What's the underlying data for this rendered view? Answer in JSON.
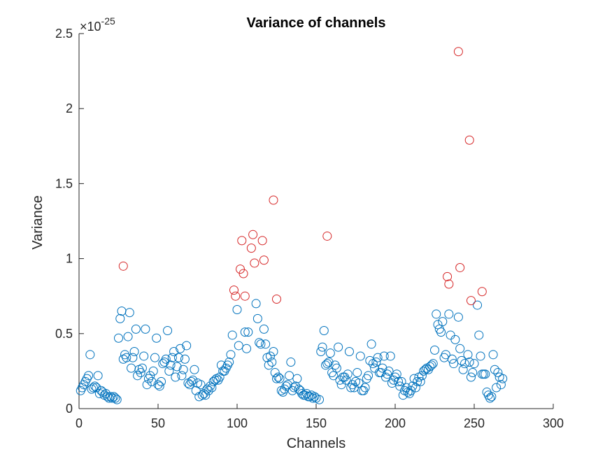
{
  "chart_data": {
    "type": "scatter",
    "title": "Variance of channels",
    "xlabel": "Channels",
    "ylabel": "Variance",
    "xlim": [
      0,
      300
    ],
    "ylim": [
      0,
      2.5
    ],
    "exponent_label": "×10",
    "exponent_value": "-25",
    "grid": false,
    "colors": {
      "normal": "#0072BD",
      "outlier": "#D62728",
      "axis": "#262626"
    },
    "x_ticks": [
      {
        "value": 0,
        "label": "0"
      },
      {
        "value": 50,
        "label": "50"
      },
      {
        "value": 100,
        "label": "100"
      },
      {
        "value": 150,
        "label": "150"
      },
      {
        "value": 200,
        "label": "200"
      },
      {
        "value": 250,
        "label": "250"
      },
      {
        "value": 300,
        "label": "300"
      }
    ],
    "y_ticks": [
      {
        "value": 0,
        "label": "0"
      },
      {
        "value": 0.5,
        "label": "0.5"
      },
      {
        "value": 1,
        "label": "1"
      },
      {
        "value": 1.5,
        "label": "1.5"
      },
      {
        "value": 2,
        "label": "2"
      },
      {
        "value": 2.5,
        "label": "2.5"
      }
    ],
    "series": [
      {
        "values": [
          [
            1,
            0.12
          ],
          [
            2,
            0.14
          ],
          [
            3,
            0.16
          ],
          [
            4,
            0.18
          ],
          [
            5,
            0.2
          ],
          [
            6,
            0.22
          ],
          [
            7,
            0.36
          ],
          [
            8,
            0.13
          ],
          [
            9,
            0.14
          ],
          [
            10,
            0.15
          ],
          [
            11,
            0.14
          ],
          [
            12,
            0.22
          ],
          [
            13,
            0.1
          ],
          [
            14,
            0.12
          ],
          [
            15,
            0.11
          ],
          [
            16,
            0.09
          ],
          [
            17,
            0.1
          ],
          [
            18,
            0.08
          ],
          [
            19,
            0.07
          ],
          [
            20,
            0.08
          ],
          [
            21,
            0.07
          ],
          [
            22,
            0.08
          ],
          [
            23,
            0.07
          ],
          [
            24,
            0.06
          ],
          [
            25,
            0.47
          ],
          [
            26,
            0.6
          ],
          [
            27,
            0.65
          ],
          [
            28,
            0.33
          ],
          [
            29,
            0.36
          ],
          [
            30,
            0.34
          ],
          [
            31,
            0.48
          ],
          [
            32,
            0.64
          ],
          [
            33,
            0.27
          ],
          [
            34,
            0.34
          ],
          [
            35,
            0.38
          ],
          [
            36,
            0.53
          ],
          [
            37,
            0.22
          ],
          [
            38,
            0.26
          ],
          [
            39,
            0.24
          ],
          [
            40,
            0.27
          ],
          [
            41,
            0.35
          ],
          [
            42,
            0.53
          ],
          [
            43,
            0.16
          ],
          [
            44,
            0.2
          ],
          [
            45,
            0.22
          ],
          [
            46,
            0.18
          ],
          [
            47,
            0.25
          ],
          [
            48,
            0.34
          ],
          [
            49,
            0.47
          ],
          [
            50,
            0.16
          ],
          [
            51,
            0.15
          ],
          [
            52,
            0.18
          ],
          [
            53,
            0.3
          ],
          [
            54,
            0.31
          ],
          [
            55,
            0.33
          ],
          [
            56,
            0.52
          ],
          [
            57,
            0.25
          ],
          [
            58,
            0.29
          ],
          [
            59,
            0.34
          ],
          [
            60,
            0.38
          ],
          [
            61,
            0.21
          ],
          [
            62,
            0.28
          ],
          [
            63,
            0.34
          ],
          [
            64,
            0.4
          ],
          [
            65,
            0.22
          ],
          [
            66,
            0.26
          ],
          [
            67,
            0.33
          ],
          [
            68,
            0.42
          ],
          [
            69,
            0.17
          ],
          [
            70,
            0.16
          ],
          [
            71,
            0.18
          ],
          [
            72,
            0.19
          ],
          [
            73,
            0.26
          ],
          [
            74,
            0.12
          ],
          [
            75,
            0.17
          ],
          [
            76,
            0.08
          ],
          [
            77,
            0.16
          ],
          [
            78,
            0.09
          ],
          [
            79,
            0.1
          ],
          [
            80,
            0.09
          ],
          [
            81,
            0.13
          ],
          [
            82,
            0.12
          ],
          [
            83,
            0.15
          ],
          [
            84,
            0.14
          ],
          [
            85,
            0.18
          ],
          [
            86,
            0.19
          ],
          [
            87,
            0.2
          ],
          [
            88,
            0.19
          ],
          [
            89,
            0.21
          ],
          [
            90,
            0.29
          ],
          [
            91,
            0.25
          ],
          [
            92,
            0.25
          ],
          [
            93,
            0.27
          ],
          [
            94,
            0.29
          ],
          [
            95,
            0.31
          ],
          [
            96,
            0.36
          ],
          [
            97,
            0.49
          ],
          [
            100,
            0.66
          ],
          [
            101,
            0.42
          ],
          [
            105,
            0.51
          ],
          [
            106,
            0.4
          ],
          [
            107,
            0.51
          ],
          [
            112,
            0.7
          ],
          [
            113,
            0.6
          ],
          [
            114,
            0.44
          ],
          [
            115,
            0.43
          ],
          [
            117,
            0.53
          ],
          [
            118,
            0.43
          ],
          [
            119,
            0.34
          ],
          [
            120,
            0.29
          ],
          [
            121,
            0.35
          ],
          [
            122,
            0.31
          ],
          [
            123,
            0.38
          ],
          [
            124,
            0.24
          ],
          [
            125,
            0.2
          ],
          [
            126,
            0.21
          ],
          [
            127,
            0.2
          ],
          [
            128,
            0.12
          ],
          [
            129,
            0.11
          ],
          [
            130,
            0.13
          ],
          [
            131,
            0.15
          ],
          [
            132,
            0.16
          ],
          [
            133,
            0.22
          ],
          [
            134,
            0.31
          ],
          [
            135,
            0.12
          ],
          [
            136,
            0.14
          ],
          [
            137,
            0.15
          ],
          [
            138,
            0.2
          ],
          [
            139,
            0.13
          ],
          [
            140,
            0.12
          ],
          [
            141,
            0.1
          ],
          [
            142,
            0.09
          ],
          [
            143,
            0.09
          ],
          [
            144,
            0.1
          ],
          [
            145,
            0.08
          ],
          [
            146,
            0.08
          ],
          [
            147,
            0.09
          ],
          [
            148,
            0.07
          ],
          [
            149,
            0.08
          ],
          [
            150,
            0.07
          ],
          [
            152,
            0.06
          ],
          [
            153,
            0.38
          ],
          [
            154,
            0.41
          ],
          [
            155,
            0.52
          ],
          [
            156,
            0.29
          ],
          [
            157,
            0.3
          ],
          [
            158,
            0.31
          ],
          [
            159,
            0.37
          ],
          [
            160,
            0.24
          ],
          [
            161,
            0.22
          ],
          [
            162,
            0.29
          ],
          [
            163,
            0.27
          ],
          [
            164,
            0.41
          ],
          [
            165,
            0.19
          ],
          [
            166,
            0.16
          ],
          [
            167,
            0.21
          ],
          [
            168,
            0.21
          ],
          [
            169,
            0.19
          ],
          [
            170,
            0.23
          ],
          [
            171,
            0.38
          ],
          [
            172,
            0.14
          ],
          [
            173,
            0.16
          ],
          [
            174,
            0.14
          ],
          [
            175,
            0.18
          ],
          [
            176,
            0.24
          ],
          [
            177,
            0.17
          ],
          [
            178,
            0.35
          ],
          [
            179,
            0.12
          ],
          [
            180,
            0.12
          ],
          [
            181,
            0.14
          ],
          [
            182,
            0.2
          ],
          [
            183,
            0.22
          ],
          [
            184,
            0.32
          ],
          [
            185,
            0.43
          ],
          [
            186,
            0.3
          ],
          [
            187,
            0.27
          ],
          [
            188,
            0.31
          ],
          [
            189,
            0.34
          ],
          [
            190,
            0.24
          ],
          [
            191,
            0.24
          ],
          [
            192,
            0.27
          ],
          [
            193,
            0.35
          ],
          [
            194,
            0.21
          ],
          [
            195,
            0.23
          ],
          [
            196,
            0.25
          ],
          [
            197,
            0.35
          ],
          [
            198,
            0.17
          ],
          [
            199,
            0.19
          ],
          [
            200,
            0.21
          ],
          [
            201,
            0.23
          ],
          [
            202,
            0.18
          ],
          [
            203,
            0.15
          ],
          [
            204,
            0.18
          ],
          [
            205,
            0.09
          ],
          [
            206,
            0.12
          ],
          [
            207,
            0.14
          ],
          [
            208,
            0.11
          ],
          [
            209,
            0.1
          ],
          [
            210,
            0.12
          ],
          [
            211,
            0.15
          ],
          [
            212,
            0.2
          ],
          [
            213,
            0.14
          ],
          [
            214,
            0.18
          ],
          [
            215,
            0.21
          ],
          [
            216,
            0.18
          ],
          [
            217,
            0.22
          ],
          [
            218,
            0.25
          ],
          [
            219,
            0.26
          ],
          [
            220,
            0.27
          ],
          [
            221,
            0.26
          ],
          [
            222,
            0.28
          ],
          [
            223,
            0.29
          ],
          [
            224,
            0.3
          ],
          [
            225,
            0.39
          ],
          [
            226,
            0.63
          ],
          [
            227,
            0.56
          ],
          [
            228,
            0.53
          ],
          [
            229,
            0.51
          ],
          [
            230,
            0.58
          ],
          [
            231,
            0.34
          ],
          [
            232,
            0.36
          ],
          [
            234,
            0.63
          ],
          [
            235,
            0.49
          ],
          [
            236,
            0.33
          ],
          [
            237,
            0.3
          ],
          [
            238,
            0.46
          ],
          [
            240,
            0.61
          ],
          [
            241,
            0.4
          ],
          [
            242,
            0.32
          ],
          [
            243,
            0.26
          ],
          [
            244,
            0.3
          ],
          [
            246,
            0.36
          ],
          [
            247,
            0.31
          ],
          [
            248,
            0.21
          ],
          [
            249,
            0.24
          ],
          [
            250,
            0.3
          ],
          [
            252,
            0.69
          ],
          [
            253,
            0.49
          ],
          [
            254,
            0.35
          ],
          [
            255,
            0.23
          ],
          [
            256,
            0.23
          ],
          [
            257,
            0.23
          ],
          [
            258,
            0.11
          ],
          [
            259,
            0.09
          ],
          [
            260,
            0.07
          ],
          [
            261,
            0.08
          ],
          [
            262,
            0.36
          ],
          [
            263,
            0.26
          ],
          [
            264,
            0.14
          ],
          [
            265,
            0.24
          ],
          [
            266,
            0.21
          ],
          [
            267,
            0.16
          ],
          [
            268,
            0.2
          ]
        ]
      },
      {
        "values": [
          [
            28,
            0.95
          ],
          [
            98,
            0.79
          ],
          [
            99,
            0.75
          ],
          [
            102,
            0.93
          ],
          [
            103,
            1.12
          ],
          [
            104,
            0.9
          ],
          [
            105,
            0.75
          ],
          [
            109,
            1.07
          ],
          [
            110,
            1.16
          ],
          [
            111,
            0.97
          ],
          [
            116,
            1.12
          ],
          [
            117,
            0.99
          ],
          [
            123,
            1.39
          ],
          [
            125,
            0.73
          ],
          [
            157,
            1.15
          ],
          [
            233,
            0.88
          ],
          [
            234,
            0.83
          ],
          [
            240,
            2.38
          ],
          [
            241,
            0.94
          ],
          [
            247,
            1.79
          ],
          [
            248,
            0.72
          ],
          [
            255,
            0.78
          ]
        ]
      }
    ]
  }
}
